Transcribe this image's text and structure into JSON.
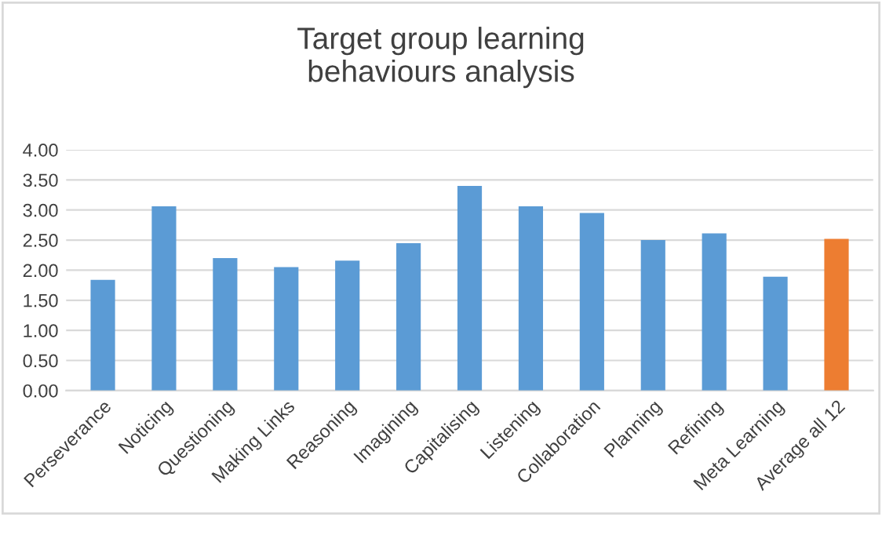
{
  "chart_data": {
    "type": "bar",
    "title": "Target group learning\nbehaviours analysis",
    "categories": [
      "Perseverance",
      "Noticing",
      "Questioning",
      "Making Links",
      "Reasoning",
      "Imagining",
      "Capitalising",
      "Listening",
      "Collaboration",
      "Planning",
      "Refining",
      "Meta Learning",
      "Average all 12"
    ],
    "values": [
      1.84,
      3.06,
      2.2,
      2.05,
      2.16,
      2.45,
      3.4,
      3.06,
      2.95,
      2.5,
      2.61,
      1.89,
      2.52
    ],
    "colors": [
      "#5b9bd5",
      "#5b9bd5",
      "#5b9bd5",
      "#5b9bd5",
      "#5b9bd5",
      "#5b9bd5",
      "#5b9bd5",
      "#5b9bd5",
      "#5b9bd5",
      "#5b9bd5",
      "#5b9bd5",
      "#5b9bd5",
      "#ed7d31"
    ],
    "ylim": [
      0,
      4
    ],
    "yticks": [
      {
        "value": 0,
        "label": "0.00"
      },
      {
        "value": 0.5,
        "label": "0.50"
      },
      {
        "value": 1,
        "label": "1.00"
      },
      {
        "value": 1.5,
        "label": "1.50"
      },
      {
        "value": 2,
        "label": "2.00"
      },
      {
        "value": 2.5,
        "label": "2.50"
      },
      {
        "value": 3,
        "label": "3.00"
      },
      {
        "value": 3.5,
        "label": "3.50"
      },
      {
        "value": 4,
        "label": "4.00"
      }
    ],
    "grid": "y"
  }
}
